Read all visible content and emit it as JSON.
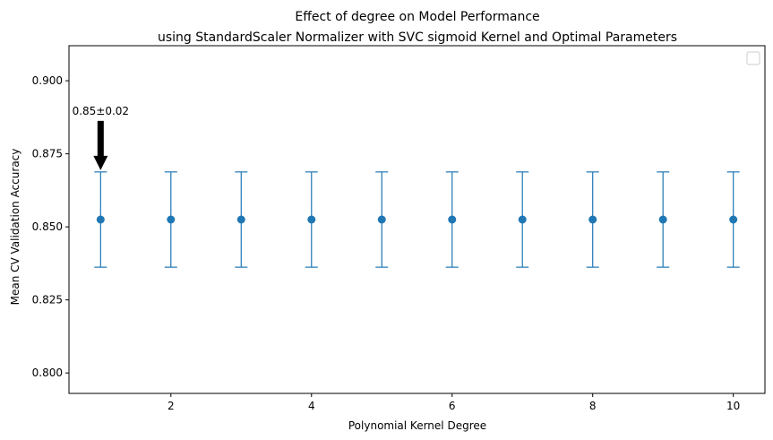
{
  "chart_data": {
    "type": "scatter",
    "title": "Effect of degree on Model Performance",
    "subtitle": "using StandardScaler Normalizer with SVC sigmoid Kernel and Optimal Parameters",
    "xlabel": "Polynomial Kernel Degree",
    "ylabel": "Mean CV Validation Accuracy",
    "x": [
      1,
      2,
      3,
      4,
      5,
      6,
      7,
      8,
      9,
      10
    ],
    "y": [
      0.8525,
      0.8525,
      0.8525,
      0.8525,
      0.8525,
      0.8525,
      0.8525,
      0.8525,
      0.8525,
      0.8525
    ],
    "yerr": [
      0.0163,
      0.0163,
      0.0163,
      0.0163,
      0.0163,
      0.0163,
      0.0163,
      0.0163,
      0.0163,
      0.0163
    ],
    "xlim": [
      0.55,
      10.45
    ],
    "ylim": [
      0.793,
      0.912
    ],
    "xticks": [
      2,
      4,
      6,
      8,
      10
    ],
    "xtick_labels": [
      "2",
      "4",
      "6",
      "8",
      "10"
    ],
    "yticks": [
      0.8,
      0.825,
      0.85,
      0.875,
      0.9
    ],
    "ytick_labels": [
      "0.800",
      "0.825",
      "0.850",
      "0.875",
      "0.900"
    ],
    "annotation": {
      "text": "0.85±0.02",
      "x": 1,
      "y": 0.8525
    },
    "legend": {
      "placement": "top-right",
      "entries": []
    },
    "grid": false,
    "colors": {
      "series": "#1f77b4",
      "arrow": "#000000"
    }
  }
}
